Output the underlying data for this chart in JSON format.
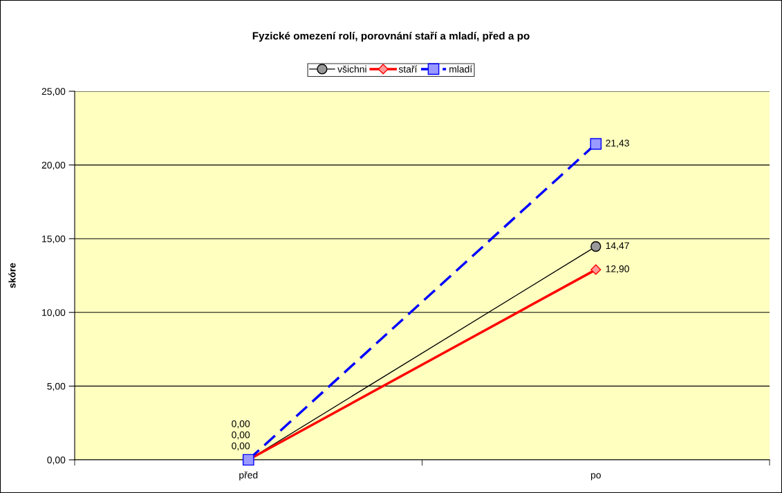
{
  "chart_data": {
    "type": "line",
    "title": "Fyzické omezení rolí, porovnání staří a mladí, před a po",
    "ylabel": "skóre",
    "categories": [
      "před",
      "po"
    ],
    "series": [
      {
        "name": "všichni",
        "color": "#000000",
        "values": [
          0,
          14.47
        ],
        "marker": "circle",
        "line_style": "solid",
        "value_labels": [
          "0,00",
          "14,47"
        ]
      },
      {
        "name": "staří",
        "color": "#ff0000",
        "values": [
          0,
          12.9
        ],
        "marker": "diamond",
        "line_style": "solid",
        "value_labels": [
          "0,00",
          "12,90"
        ]
      },
      {
        "name": "mladí",
        "color": "#0000ff",
        "values": [
          0,
          21.43
        ],
        "marker": "square",
        "line_style": "dashed",
        "value_labels": [
          "0,00",
          "21,43"
        ]
      }
    ],
    "ylim": [
      0,
      25
    ],
    "yticks": [
      {
        "value": 0,
        "label": "0,00"
      },
      {
        "value": 5,
        "label": "5,00"
      },
      {
        "value": 10,
        "label": "10,00"
      },
      {
        "value": 15,
        "label": "15,00"
      },
      {
        "value": 20,
        "label": "20,00"
      },
      {
        "value": 25,
        "label": "25,00"
      }
    ],
    "grid": "y",
    "legend": "top"
  }
}
